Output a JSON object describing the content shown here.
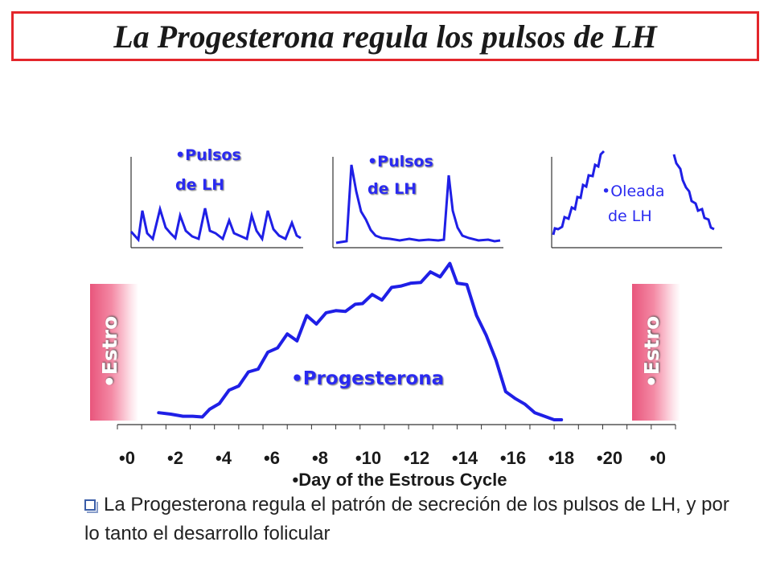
{
  "title": "La Progesterona regula los pulsos de LH",
  "panels": [
    {
      "label_line1": "•Pulsos",
      "label_line2": "de LH"
    },
    {
      "label_line1": "•Pulsos",
      "label_line2": "de LH"
    },
    {
      "label_line1": "•Oleada",
      "label_line2": "de LH"
    }
  ],
  "estro_label": "•Estro",
  "curve_label": "•Progesterona",
  "chart_data": {
    "type": "line",
    "series": [
      {
        "name": "Progesterona",
        "x": [
          1.7,
          2.2,
          2.7,
          3.1,
          3.5,
          3.8,
          4.2,
          4.6,
          5.0,
          5.4,
          5.8,
          6.2,
          6.6,
          7.0,
          7.4,
          7.8,
          8.2,
          8.6,
          9.0,
          9.4,
          9.8,
          10.1,
          10.5,
          10.9,
          11.3,
          11.7,
          12.1,
          12.5,
          12.9,
          13.3,
          13.7,
          14.0,
          14.4,
          14.8,
          15.2,
          15.6,
          16.0,
          16.4,
          16.8,
          17.2,
          17.6,
          18.0,
          18.3
        ],
        "values": [
          1,
          0.8,
          0.5,
          0.5,
          0.4,
          1.5,
          2.3,
          4.2,
          4.8,
          6.8,
          7.2,
          9.6,
          10.2,
          12.2,
          11.2,
          14.8,
          13.6,
          15.2,
          15.5,
          15.4,
          16.4,
          16.5,
          17.8,
          17.0,
          18.8,
          19.0,
          19.4,
          19.5,
          21.0,
          20.3,
          22.2,
          19.4,
          19.2,
          14.8,
          12.0,
          8.5,
          4.0,
          3.0,
          2.2,
          1.0,
          0.5,
          0.0,
          0.0
        ]
      }
    ],
    "x_ticks": [
      "•0",
      "•2",
      "•4",
      "•6",
      "•8",
      "•10",
      "•12",
      "•14",
      "•16",
      "•18",
      "•20",
      "•0"
    ],
    "xlabel": "•Day of the Estrous Cycle",
    "ylim": [
      0,
      22.5
    ],
    "accent_color": "#1f1fe6",
    "estro_color": "#f06a8a"
  },
  "footer": "La Progesterona regula el patrón de secreción de los pulsos de LH, y por lo tanto el desarrollo folicular"
}
